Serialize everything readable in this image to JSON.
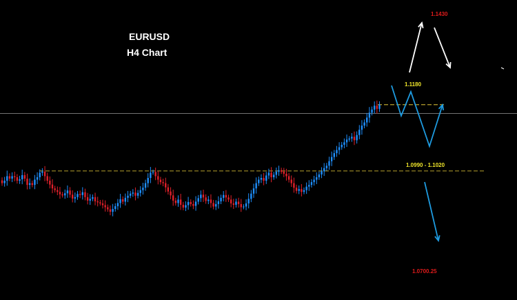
{
  "title": {
    "symbol": "EURUSD",
    "timeframe": "H4 Chart"
  },
  "colors": {
    "background": "#000000",
    "bull": "#1e90ff",
    "bear": "#e0202a",
    "support_line": "#b8a22e",
    "price_line": "#9a9a9a",
    "up_label": "#e01b1b",
    "level_label": "#f0e62a",
    "target_label": "#e01b1b",
    "arrow_white": "#ffffff",
    "arrow_blue": "#1e9be0"
  },
  "chart_data": {
    "type": "candlestick",
    "instrument": "EURUSD",
    "timeframe": "H4",
    "grid": false,
    "y_range": [
      1.063,
      1.148
    ],
    "closes": [
      1.0955,
      1.0962,
      1.0975,
      1.0968,
      1.0975,
      1.0972,
      1.0962,
      1.0966,
      1.0978,
      1.0968,
      1.095,
      1.0955,
      1.095,
      1.0965,
      1.0972,
      1.0985,
      1.0988,
      1.0975,
      1.0962,
      1.0951,
      1.094,
      1.0935,
      1.093,
      1.0923,
      1.092,
      1.0926,
      1.0934,
      1.0922,
      1.0911,
      1.0915,
      1.0924,
      1.0921,
      1.0929,
      1.0915,
      1.0905,
      1.091,
      1.0915,
      1.0903,
      1.09,
      1.0897,
      1.0892,
      1.0886,
      1.088,
      1.0873,
      1.0881,
      1.0889,
      1.0898,
      1.0909,
      1.0902,
      1.0913,
      1.0919,
      1.0925,
      1.0928,
      1.0919,
      1.0927,
      1.0935,
      1.0942,
      1.0955,
      1.097,
      1.0985,
      1.0987,
      1.0975,
      1.0965,
      1.0958,
      1.0955,
      1.0943,
      1.0931,
      1.092,
      1.0905,
      1.0898,
      1.0908,
      1.0893,
      1.0885,
      1.0892,
      1.0901,
      1.0895,
      1.089,
      1.0902,
      1.0912,
      1.0922,
      1.0914,
      1.0904,
      1.0908,
      1.0898,
      1.0888,
      1.0895,
      1.0903,
      1.0913,
      1.0921,
      1.0914,
      1.0908,
      1.0897,
      1.0893,
      1.0902,
      1.0895,
      1.0886,
      1.0888,
      1.0897,
      1.091,
      1.0925,
      1.094,
      1.0955,
      1.0965,
      1.097,
      1.0962,
      1.0977,
      1.0985,
      1.0972,
      1.0979,
      1.0988,
      1.0992,
      1.0988,
      1.0982,
      1.0975,
      1.0965,
      1.0955,
      1.0942,
      1.0933,
      1.0938,
      1.093,
      1.0935,
      1.0945,
      1.095,
      1.0958,
      1.0965,
      1.0972,
      1.098,
      1.0989,
      1.0998,
      1.1005,
      1.1018,
      1.103,
      1.1041,
      1.105,
      1.1058,
      1.1065,
      1.1072,
      1.108,
      1.1083,
      1.1088,
      1.1078,
      1.1093,
      1.1108,
      1.112,
      1.1129,
      1.1143,
      1.1157,
      1.1166,
      1.1177,
      1.1168,
      1.118
    ],
    "annotations": [
      {
        "text": "1.1430",
        "price": 1.143,
        "role": "upside target"
      },
      {
        "text": "1.1180",
        "price": 1.118,
        "role": "resistance"
      },
      {
        "text": "1.0990 - 1.1020",
        "price": 1.099,
        "role": "support zone"
      },
      {
        "text": "1.0700.25",
        "price": 1.07,
        "role": "downside target"
      }
    ],
    "support_line_price": 1.099,
    "resistance_line_price": 1.118,
    "current_price_line": 1.1155
  }
}
